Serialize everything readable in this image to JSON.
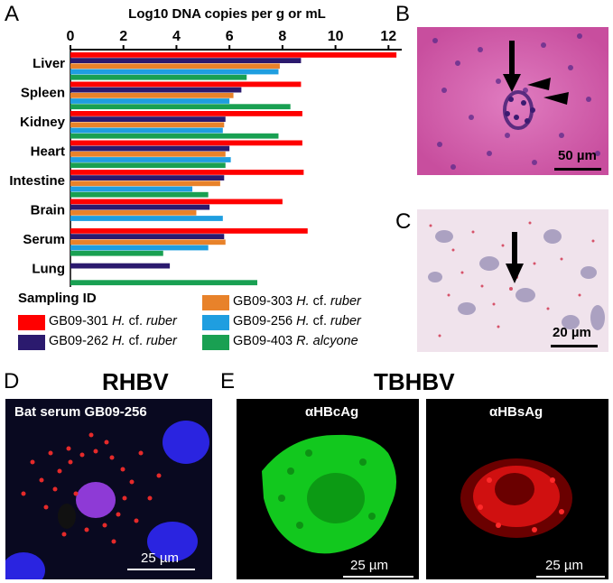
{
  "panel_letters": {
    "a": "A",
    "b": "B",
    "c": "C",
    "d": "D",
    "e": "E"
  },
  "chart_data": {
    "type": "bar",
    "orientation": "horizontal",
    "title": "Log10 DNA copies per g or mL",
    "xlim": [
      0,
      12.5
    ],
    "x_ticks": [
      "0",
      "2",
      "4",
      "6",
      "8",
      "10",
      "12"
    ],
    "categories": [
      "Liver",
      "Spleen",
      "Kidney",
      "Heart",
      "Intestine",
      "Brain",
      "Serum",
      "Lung"
    ],
    "series": [
      {
        "name": "GB09-301",
        "species": "H. cf. ruber",
        "prefix": "H.",
        "italic": "cf. ruber",
        "color": "#ff0000",
        "values": [
          12.3,
          8.7,
          8.75,
          8.75,
          8.8,
          8.0,
          8.95,
          null
        ]
      },
      {
        "name": "GB09-262",
        "species": "H. cf. ruber",
        "prefix": "H.",
        "italic": "cf. ruber",
        "color": "#2b1a6e",
        "values": [
          8.7,
          6.45,
          5.85,
          6.0,
          5.8,
          5.25,
          5.8,
          3.75
        ]
      },
      {
        "name": "GB09-303",
        "species": "H. cf. ruber",
        "prefix": "H.",
        "italic": "cf. ruber",
        "color": "#e8822a",
        "values": [
          7.9,
          6.15,
          5.8,
          5.85,
          5.65,
          4.75,
          5.85,
          null
        ]
      },
      {
        "name": "GB09-256",
        "species": "H. cf. ruber",
        "prefix": "H.",
        "italic": "cf. ruber",
        "color": "#1f9ee0",
        "values": [
          7.85,
          6.0,
          5.75,
          6.05,
          4.6,
          5.75,
          5.2,
          null
        ]
      },
      {
        "name": "GB09-403",
        "species": "R. alcyone",
        "prefix": "R.",
        "italic": "alcyone",
        "color": "#19a052",
        "values": [
          6.65,
          8.3,
          7.85,
          5.85,
          5.2,
          null,
          3.5,
          7.05
        ]
      }
    ],
    "legend": {
      "title": "Sampling ID",
      "placement": "bottom-left"
    },
    "grid": false
  },
  "legend_italic_labels": {
    "s1_prefix": "H.",
    "s1_italic": "ruber",
    "cf": "cf."
  },
  "panel_b": {
    "scale_label": "50 µm"
  },
  "panel_c": {
    "scale_label": "20 µm"
  },
  "panel_d": {
    "title": "RHBV",
    "inner_label": "Bat serum GB09-256",
    "scale_label": "25 µm"
  },
  "panel_e": {
    "title": "TBHBV",
    "left_label": "αHBcAg",
    "right_label": "αHBsAg",
    "left_scale_label": "25  µm",
    "right_scale_label": "25 µm"
  }
}
